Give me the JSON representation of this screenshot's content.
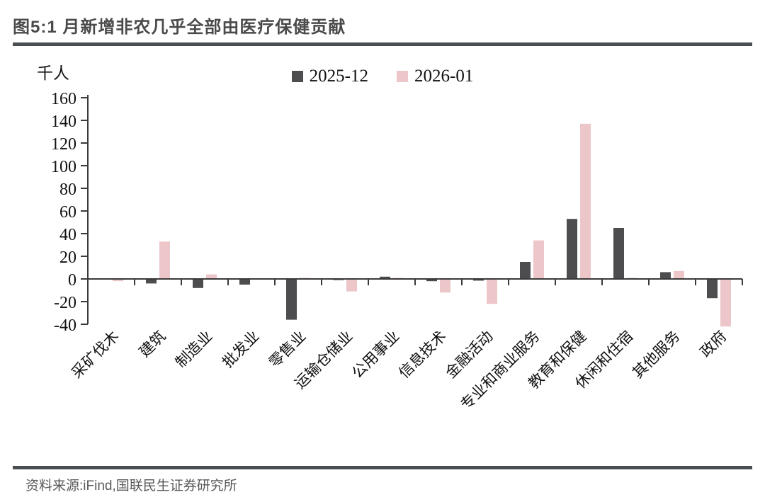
{
  "header": {
    "title": "图5:1 月新增非农几乎全部由医疗保健贡献"
  },
  "chart_data": {
    "type": "bar",
    "title": "图5:1 月新增非农几乎全部由医疗保健贡献",
    "unit_label": "千人",
    "xlabel": "",
    "ylabel": "千人",
    "ylim": [
      -40,
      160
    ],
    "yticks": [
      160,
      140,
      120,
      100,
      80,
      60,
      40,
      20,
      0,
      -20,
      -40
    ],
    "grid": false,
    "legend_position": "top-center",
    "categories": [
      "采矿伐木",
      "建筑",
      "制造业",
      "批发业",
      "零售业",
      "运输仓储业",
      "公用事业",
      "信息技术",
      "金融活动",
      "专业和商业服务",
      "教育和保健",
      "休闲和住宿",
      "其他服务",
      "政府"
    ],
    "series": [
      {
        "name": "2025-12",
        "color": "#4d4d4f",
        "values": [
          0,
          -4,
          -8,
          -5,
          -36,
          -1,
          2,
          -2,
          -1.5,
          15,
          53,
          45,
          6,
          -17
        ]
      },
      {
        "name": "2026-01",
        "color": "#ecc6c8",
        "values": [
          -2,
          33,
          4,
          0.5,
          1,
          -11,
          1,
          -12,
          -22,
          34,
          137,
          1,
          7,
          -42
        ]
      }
    ],
    "axis_color": "#3a3a3a",
    "tick_label_color": "#111111"
  },
  "footer": {
    "source": "资料来源:iFind,国联民生证券研究所"
  }
}
